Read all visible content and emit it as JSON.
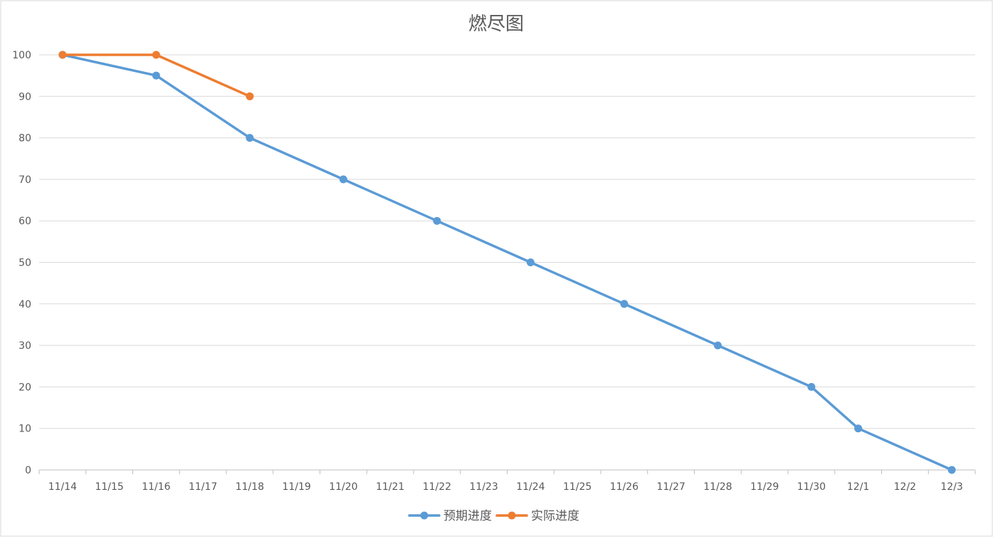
{
  "chart_data": {
    "type": "line",
    "title": "燃尽图",
    "xlabel": "",
    "ylabel": "",
    "categories": [
      "11/14",
      "11/15",
      "11/16",
      "11/17",
      "11/18",
      "11/19",
      "11/20",
      "11/21",
      "11/22",
      "11/23",
      "11/24",
      "11/25",
      "11/26",
      "11/27",
      "11/28",
      "11/29",
      "11/30",
      "12/1",
      "12/2",
      "12/3"
    ],
    "y_ticks": [
      0,
      10,
      20,
      30,
      40,
      50,
      60,
      70,
      80,
      90,
      100
    ],
    "ylim": [
      0,
      100
    ],
    "grid": true,
    "legend_position": "bottom",
    "series": [
      {
        "name": "预期进度",
        "color": "#5B9BD5",
        "points": [
          {
            "x": "11/14",
            "y": 100
          },
          {
            "x": "11/16",
            "y": 95
          },
          {
            "x": "11/18",
            "y": 80
          },
          {
            "x": "11/20",
            "y": 70
          },
          {
            "x": "11/22",
            "y": 60
          },
          {
            "x": "11/24",
            "y": 50
          },
          {
            "x": "11/26",
            "y": 40
          },
          {
            "x": "11/28",
            "y": 30
          },
          {
            "x": "11/30",
            "y": 20
          },
          {
            "x": "12/1",
            "y": 10
          },
          {
            "x": "12/3",
            "y": 0
          }
        ]
      },
      {
        "name": "实际进度",
        "color": "#ED7D31",
        "points": [
          {
            "x": "11/14",
            "y": 100
          },
          {
            "x": "11/16",
            "y": 100
          },
          {
            "x": "11/18",
            "y": 90
          }
        ]
      }
    ]
  }
}
